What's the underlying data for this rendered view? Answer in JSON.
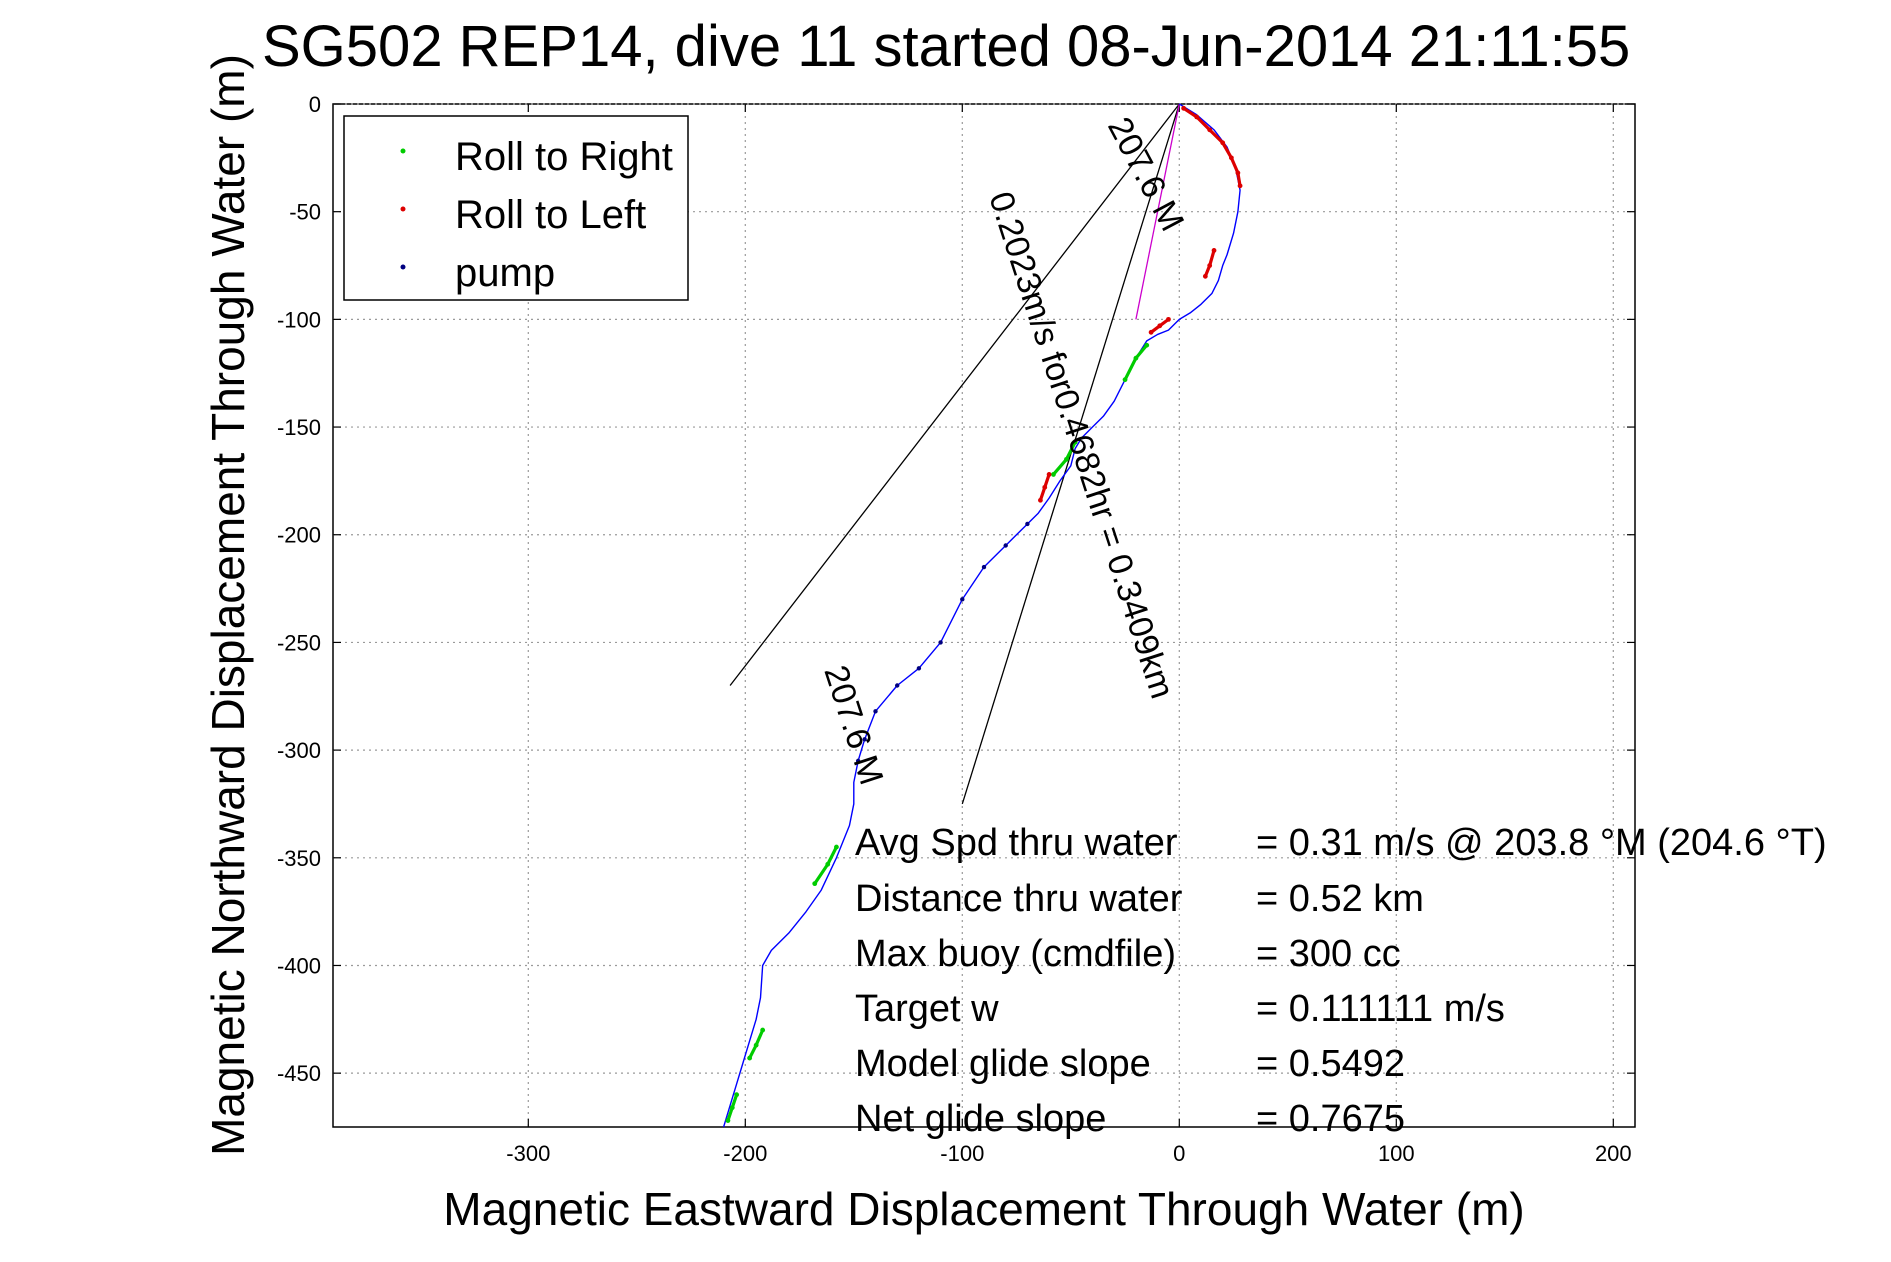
{
  "chart_data": {
    "type": "line",
    "title": "SG502 REP14, dive 11 started 08-Jun-2014 21:11:55",
    "xlabel": "Magnetic Eastward Displacement Through Water (m)",
    "ylabel": "Magnetic Northward Displacement Through Water (m)",
    "xlim": [
      -390,
      210
    ],
    "ylim": [
      -475,
      0
    ],
    "xticks": [
      -300,
      -200,
      -100,
      0,
      100,
      200
    ],
    "yticks": [
      0,
      -50,
      -100,
      -150,
      -200,
      -250,
      -300,
      -350,
      -400,
      -450
    ],
    "grid": true,
    "legend_position": "top-left",
    "legend": [
      {
        "name": "Roll to Right",
        "color": "#00cc00"
      },
      {
        "name": "Roll to Left",
        "color": "#dd0000"
      },
      {
        "name": "pump",
        "color": "#000080"
      }
    ],
    "colors": {
      "track": "#0000ff",
      "right_roll": "#00cc00",
      "left_roll": "#dd0000",
      "pump": "#000080",
      "bearing_line": "#000000",
      "magenta_line": "#cc00cc"
    },
    "series": [
      {
        "name": "track",
        "x": [
          0,
          8,
          16,
          22,
          26,
          28,
          27,
          25,
          22,
          20,
          18,
          15,
          10,
          5,
          0,
          -5,
          -10,
          -15,
          -20,
          -25,
          -30,
          -35,
          -40,
          -45,
          -48,
          -50,
          -55,
          -60,
          -65,
          -70,
          -80,
          -90,
          -100,
          -110,
          -120,
          -130,
          -140,
          -145,
          -148,
          -150,
          -150,
          -152,
          -158,
          -165,
          -172,
          -180,
          -188,
          -192,
          -193,
          -195,
          -198,
          -201,
          -204,
          -207,
          -210
        ],
        "y": [
          0,
          -5,
          -12,
          -20,
          -30,
          -40,
          -50,
          -60,
          -70,
          -75,
          -82,
          -88,
          -93,
          -97,
          -100,
          -105,
          -107,
          -110,
          -118,
          -128,
          -138,
          -145,
          -150,
          -155,
          -160,
          -168,
          -175,
          -183,
          -190,
          -195,
          -205,
          -215,
          -230,
          -250,
          -262,
          -270,
          -282,
          -295,
          -305,
          -315,
          -325,
          -335,
          -350,
          -365,
          -375,
          -385,
          -393,
          -400,
          -415,
          -425,
          -435,
          -445,
          -455,
          -465,
          -475
        ]
      },
      {
        "name": "Roll to Right",
        "segments": [
          {
            "x": [
              -15,
              -20,
              -25
            ],
            "y": [
              -112,
              -118,
              -128
            ]
          },
          {
            "x": [
              -48,
              -52,
              -58
            ],
            "y": [
              -157,
              -165,
              -172
            ]
          },
          {
            "x": [
              -158,
              -162,
              -168
            ],
            "y": [
              -345,
              -353,
              -362
            ]
          },
          {
            "x": [
              -192,
              -195,
              -198
            ],
            "y": [
              -430,
              -437,
              -443
            ]
          },
          {
            "x": [
              -204,
              -206,
              -208
            ],
            "y": [
              -460,
              -466,
              -472
            ]
          }
        ]
      },
      {
        "name": "Roll to Left",
        "segments": [
          {
            "x": [
              2,
              8,
              14,
              20,
              24,
              27,
              28
            ],
            "y": [
              -2,
              -6,
              -12,
              -18,
              -25,
              -32,
              -38
            ]
          },
          {
            "x": [
              16,
              14,
              12
            ],
            "y": [
              -68,
              -75,
              -80
            ]
          },
          {
            "x": [
              -5,
              -9,
              -13
            ],
            "y": [
              -100,
              -103,
              -106
            ]
          },
          {
            "x": [
              -60,
              -62,
              -64
            ],
            "y": [
              -172,
              -178,
              -184
            ]
          }
        ]
      },
      {
        "name": "pump",
        "x": [
          -70,
          -80,
          -90,
          -100,
          -110,
          -120,
          -130,
          -140,
          -145,
          -148
        ],
        "y": [
          -195,
          -205,
          -215,
          -230,
          -250,
          -262,
          -270,
          -282,
          -295,
          -305
        ]
      }
    ],
    "bearing_lines": [
      {
        "x": [
          0,
          -207
        ],
        "y": [
          0,
          -270
        ]
      },
      {
        "x": [
          0,
          -100
        ],
        "y": [
          0,
          -325
        ]
      },
      {
        "x": [
          0,
          -20
        ],
        "y": [
          0,
          -100
        ]
      }
    ],
    "annotations": [
      {
        "text": "207.6 M",
        "x": -20,
        "y": -35,
        "angle": 62
      },
      {
        "text": "0.2023m/s for0.4682hr = 0.3409km",
        "x": -50,
        "y": -160,
        "angle": 72
      },
      {
        "text": "207.6 M",
        "x": -155,
        "y": -290,
        "angle": 72
      }
    ],
    "stats": [
      {
        "label": "Avg Spd thru water",
        "value": "=  0.31 m/s @ 203.8 °M (204.6 °T)"
      },
      {
        "label": "Distance thru water",
        "value": "=  0.52 km"
      },
      {
        "label": "Max buoy (cmdfile)",
        "value": "= 300 cc"
      },
      {
        "label": "Target w",
        "value": "= 0.111111 m/s"
      },
      {
        "label": "Model glide slope",
        "value": "= 0.5492"
      },
      {
        "label": "Net glide slope",
        "value": "= 0.7675"
      }
    ]
  }
}
